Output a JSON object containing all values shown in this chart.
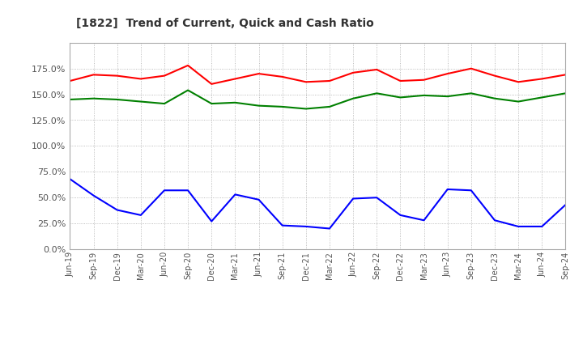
{
  "title": "[1822]  Trend of Current, Quick and Cash Ratio",
  "x_labels": [
    "Jun-19",
    "Sep-19",
    "Dec-19",
    "Mar-20",
    "Jun-20",
    "Sep-20",
    "Dec-20",
    "Mar-21",
    "Jun-21",
    "Sep-21",
    "Dec-21",
    "Mar-22",
    "Jun-22",
    "Sep-22",
    "Dec-22",
    "Mar-23",
    "Jun-23",
    "Sep-23",
    "Dec-23",
    "Mar-24",
    "Jun-24",
    "Sep-24"
  ],
  "current_ratio": [
    163,
    169,
    168,
    165,
    168,
    178,
    160,
    165,
    170,
    167,
    162,
    163,
    171,
    174,
    163,
    164,
    170,
    175,
    168,
    162,
    165,
    169
  ],
  "quick_ratio": [
    145,
    146,
    145,
    143,
    141,
    154,
    141,
    142,
    139,
    138,
    136,
    138,
    146,
    151,
    147,
    149,
    148,
    151,
    146,
    143,
    147,
    151
  ],
  "cash_ratio": [
    68,
    52,
    38,
    33,
    57,
    57,
    27,
    53,
    48,
    23,
    22,
    20,
    49,
    50,
    33,
    28,
    58,
    57,
    28,
    22,
    22,
    43
  ],
  "current_color": "#FF0000",
  "quick_color": "#008000",
  "cash_color": "#0000FF",
  "background_color": "#FFFFFF",
  "grid_color": "#AAAAAA",
  "ylim": [
    0,
    200
  ],
  "yticks": [
    0.0,
    25.0,
    50.0,
    75.0,
    100.0,
    125.0,
    150.0,
    175.0
  ]
}
